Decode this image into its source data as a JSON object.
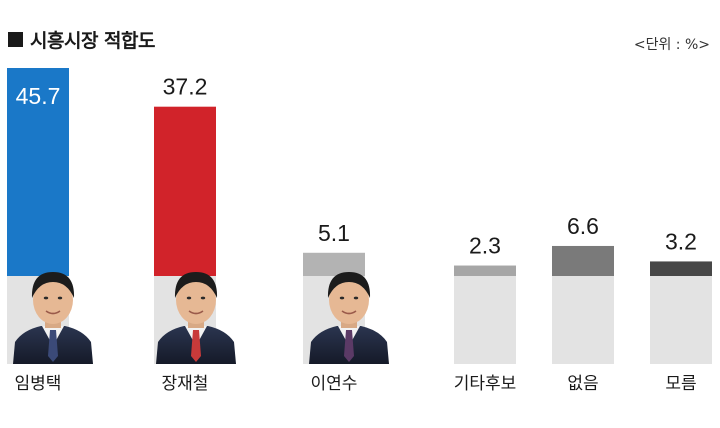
{
  "header": {
    "title": "시흥시장 적합도",
    "unit": "<단위 : %>"
  },
  "chart_data": {
    "type": "bar",
    "title": "시흥시장 적합도",
    "unit_label": "<단위 : %>",
    "categories": [
      "임병택",
      "장재철",
      "이연수",
      "기타후보",
      "없음",
      "모름"
    ],
    "values": [
      45.7,
      37.2,
      5.1,
      2.3,
      6.6,
      3.2
    ],
    "value_labels": [
      "45.7",
      "37.2",
      "5.1",
      "2.3",
      "6.6",
      "3.2"
    ],
    "colors": [
      "#1a78c8",
      "#d1232a",
      "#b3b3b3",
      "#a6a6a6",
      "#7a7a7a",
      "#474747"
    ],
    "ylim": [
      0,
      45.7
    ],
    "grid": false,
    "legend": "none"
  }
}
